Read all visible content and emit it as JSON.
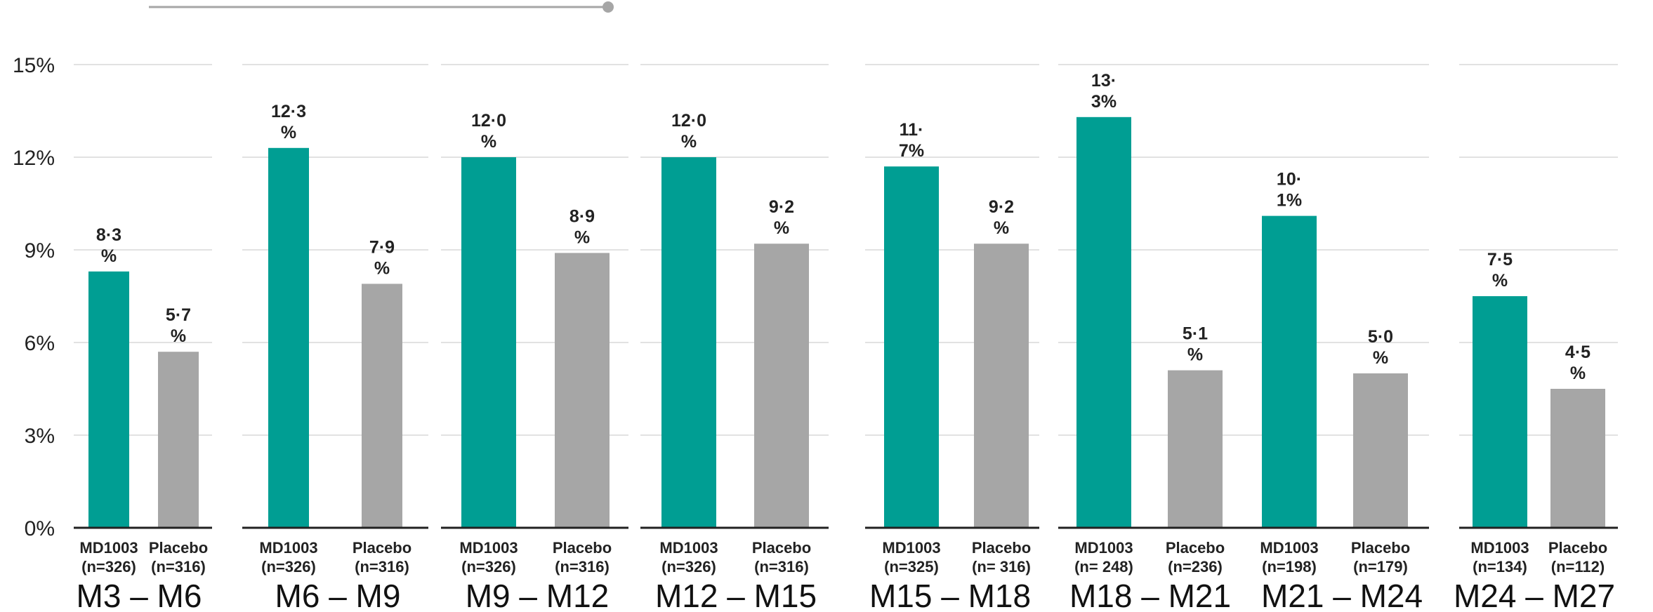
{
  "colors": {
    "md1003": "#009E93",
    "placebo": "#A6A6A6",
    "grid": "#D9D9D9",
    "axis": "#222222",
    "slider": "#A6A6A6"
  },
  "chart_data": {
    "type": "bar",
    "ylim": [
      0,
      15
    ],
    "yticks": [
      "0%",
      "3%",
      "6%",
      "9%",
      "12%",
      "15%"
    ],
    "grid": true,
    "groups": [
      {
        "label": "M3 – M6",
        "bars": [
          {
            "name": "MD1003",
            "n": "(n=326)",
            "value": 8.3,
            "label_lines": [
              "8·3",
              "%"
            ]
          },
          {
            "name": "Placebo",
            "n": "(n=316)",
            "value": 5.7,
            "label_lines": [
              "5·7",
              "%"
            ]
          }
        ]
      },
      {
        "label": "M6 – M9",
        "bars": [
          {
            "name": "MD1003",
            "n": "(n=326)",
            "value": 12.3,
            "label_lines": [
              "12·3",
              "%"
            ]
          },
          {
            "name": "Placebo",
            "n": "(n=316)",
            "value": 7.9,
            "label_lines": [
              "7·9",
              "%"
            ]
          }
        ]
      },
      {
        "label": "M9 – M12",
        "bars": [
          {
            "name": "MD1003",
            "n": "(n=326)",
            "value": 12.0,
            "label_lines": [
              "12·0",
              "%"
            ]
          },
          {
            "name": "Placebo",
            "n": "(n=316)",
            "value": 8.9,
            "label_lines": [
              "8·9",
              "%"
            ]
          }
        ]
      },
      {
        "label": "M12 – M15",
        "bars": [
          {
            "name": "MD1003",
            "n": "(n=326)",
            "value": 12.0,
            "label_lines": [
              "12·0",
              "%"
            ]
          },
          {
            "name": "Placebo",
            "n": "(n=316)",
            "value": 9.2,
            "label_lines": [
              "9·2",
              "%"
            ]
          }
        ]
      },
      {
        "label": "M15 – M18",
        "bars": [
          {
            "name": "MD1003",
            "n": "(n=325)",
            "value": 11.7,
            "label_lines": [
              "11·",
              "7%"
            ]
          },
          {
            "name": "Placebo",
            "n": "(n= 316)",
            "value": 9.2,
            "label_lines": [
              "9·2",
              "%"
            ]
          }
        ]
      },
      {
        "label": "M18 – M21",
        "bars": [
          {
            "name": "MD1003",
            "n": "(n= 248)",
            "value": 13.3,
            "label_lines": [
              "13·",
              "3%"
            ]
          },
          {
            "name": "Placebo",
            "n": "(n=236)",
            "value": 5.1,
            "label_lines": [
              "5·1",
              "%"
            ]
          }
        ]
      },
      {
        "label": "M21 – M24",
        "bars": [
          {
            "name": "MD1003",
            "n": "(n=198)",
            "value": 10.1,
            "label_lines": [
              "10·",
              "1%"
            ]
          },
          {
            "name": "Placebo",
            "n": "(n=179)",
            "value": 5.0,
            "label_lines": [
              "5·0",
              "%"
            ]
          }
        ]
      },
      {
        "label": "M24 – M27",
        "bars": [
          {
            "name": "MD1003",
            "n": "(n=134)",
            "value": 7.5,
            "label_lines": [
              "7·5",
              "%"
            ]
          },
          {
            "name": "Placebo",
            "n": "(n=112)",
            "value": 4.5,
            "label_lines": [
              "4·5",
              "%"
            ]
          }
        ]
      }
    ]
  }
}
